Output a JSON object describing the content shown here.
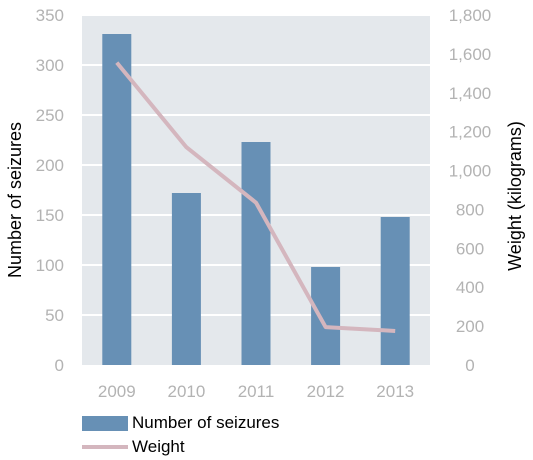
{
  "chart_data": {
    "type": "bar",
    "categories": [
      "2009",
      "2010",
      "2011",
      "2012",
      "2013"
    ],
    "series": [
      {
        "name": "Number of seizures",
        "type": "bar",
        "axis": "left",
        "values": [
          331,
          172,
          223,
          98,
          148
        ]
      },
      {
        "name": "Weight",
        "type": "line",
        "axis": "right",
        "values": [
          1555,
          1120,
          835,
          195,
          175
        ]
      }
    ],
    "ylabel_left": "Number of seizures",
    "ylabel_right": "Weight (kilograms)",
    "ylim_left": [
      0,
      350
    ],
    "ylim_right": [
      0,
      1800
    ],
    "yticks_left": [
      "0",
      "50",
      "100",
      "150",
      "200",
      "250",
      "300",
      "350"
    ],
    "yticks_right": [
      "0",
      "200",
      "400",
      "600",
      "800",
      "1,000",
      "1,200",
      "1,400",
      "1,600",
      "1,800"
    ],
    "grid": true,
    "legend_position": "bottom-left",
    "colors": {
      "plot_background": "#e4e8ec",
      "grid": "#ffffff",
      "bar": "#6790b5",
      "line": "#d4b6be",
      "tick_text": "#b3b3b3"
    }
  }
}
